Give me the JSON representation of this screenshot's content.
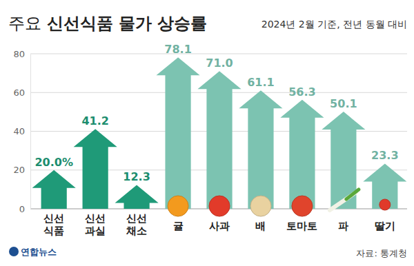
{
  "chart_data": {
    "type": "bar",
    "title": "주요 신선식품 물가 상승률",
    "subtitle": "2024년 2월 기준, 전년 동월 대비",
    "categories": [
      "신선\n식품",
      "신선\n과실",
      "신선\n채소",
      "귤",
      "사과",
      "배",
      "토마토",
      "파",
      "딸기"
    ],
    "values": [
      20.0,
      41.2,
      12.3,
      78.1,
      71.0,
      61.1,
      56.3,
      50.1,
      23.3
    ],
    "value_labels": [
      "20.0%",
      "41.2",
      "12.3",
      "78.1",
      "71.0",
      "61.1",
      "56.3",
      "50.1",
      "23.3"
    ],
    "colors": [
      "#1f9a78",
      "#1f9a78",
      "#1f9a78",
      "#7cc3b1",
      "#7cc3b1",
      "#7cc3b1",
      "#7cc3b1",
      "#7cc3b1",
      "#7cc3b1"
    ],
    "ylim": [
      0,
      80
    ],
    "yticks": [
      0,
      20,
      40,
      60,
      80
    ],
    "grid": true,
    "data_labels": true,
    "credit": "연합뉴스",
    "source": "자료: 통계청"
  }
}
